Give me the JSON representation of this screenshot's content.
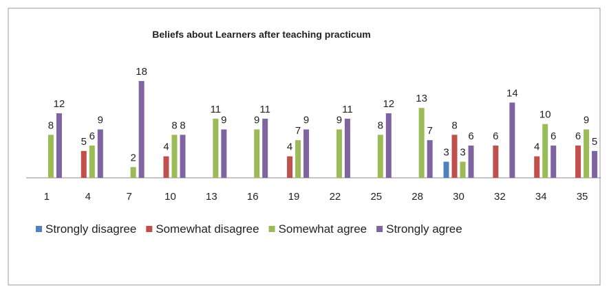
{
  "chart_data": {
    "type": "bar",
    "title": "Beliefs about Learners after teaching practicum",
    "categories": [
      "1",
      "4",
      "7",
      "10",
      "13",
      "16",
      "19",
      "22",
      "25",
      "28",
      "30",
      "32",
      "34",
      "35"
    ],
    "series": [
      {
        "name": "Strongly disagree",
        "color": "#4f81bd",
        "values": [
          null,
          null,
          null,
          null,
          null,
          null,
          null,
          null,
          null,
          null,
          3,
          null,
          null,
          null
        ]
      },
      {
        "name": "Somewhat disagree",
        "color": "#c0504d",
        "values": [
          null,
          5,
          null,
          4,
          null,
          null,
          4,
          null,
          null,
          null,
          8,
          6,
          4,
          6
        ]
      },
      {
        "name": "Somewhat agree",
        "color": "#9bbb59",
        "values": [
          8,
          6,
          2,
          8,
          11,
          9,
          7,
          9,
          8,
          13,
          3,
          null,
          10,
          9
        ]
      },
      {
        "name": "Strongly agree",
        "color": "#8064a2",
        "values": [
          12,
          9,
          18,
          8,
          9,
          11,
          9,
          11,
          12,
          7,
          6,
          14,
          6,
          5
        ]
      }
    ],
    "ylim": [
      0,
      18
    ],
    "legend": "bottom"
  }
}
